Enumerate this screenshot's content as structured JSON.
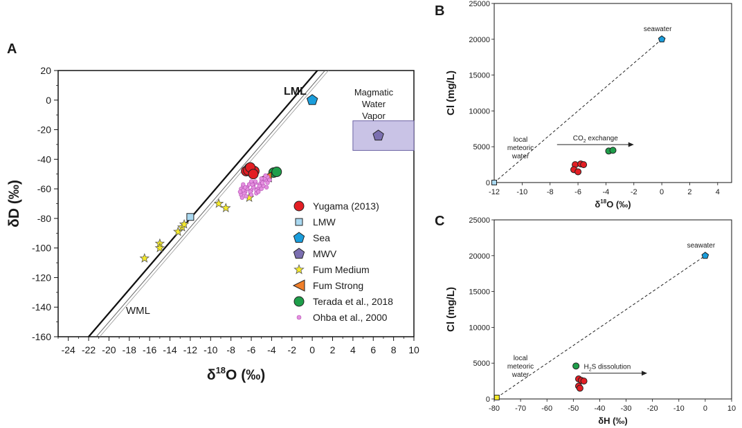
{
  "panels": {
    "A": {
      "letter": "A"
    },
    "B": {
      "letter": "B"
    },
    "C": {
      "letter": "C"
    }
  },
  "colors": {
    "yugama": "#e31e24",
    "lmw": "#a9d8f0",
    "sea": "#1a9ddb",
    "mwv": "#7b6fb0",
    "fum_medium": "#f5ea2a",
    "fum_strong": "#f07f2a",
    "terada": "#1f9e4a",
    "ohba": "#e58fe0",
    "mwv_box": "#c9c3e6"
  },
  "chart_data": [
    {
      "id": "A",
      "type": "scatter",
      "title": "",
      "xlabel": "δ18O (‰)",
      "ylabel": "δD (‰)",
      "xlim": [
        -25,
        10
      ],
      "ylim": [
        -160,
        20
      ],
      "xticks": [
        -24,
        -22,
        -20,
        -18,
        -16,
        -14,
        -12,
        -10,
        -8,
        -6,
        -4,
        -2,
        0,
        2,
        4,
        6,
        8,
        10
      ],
      "yticks": [
        20,
        0,
        -20,
        -40,
        -60,
        -80,
        -100,
        -120,
        -140,
        -160
      ],
      "lines": [
        {
          "name": "LML",
          "label": "LML",
          "slope": 8,
          "intercept": 16
        },
        {
          "name": "WML",
          "label": "WML",
          "slope": 8,
          "intercept": 10
        }
      ],
      "annotations": {
        "magmatic_line1": "Magmatic",
        "magmatic_line2": "Water",
        "magmatic_line3": "Vapor"
      },
      "mwv_box": {
        "x": [
          4,
          10
        ],
        "y": [
          -14,
          -34
        ]
      },
      "series": [
        {
          "name": "Yugama (2013)",
          "marker": "circle",
          "color": "#e31e24",
          "x": [
            -6.5,
            -6.2,
            -6.0,
            -5.9,
            -6.3,
            -5.7,
            -6.1,
            -5.8
          ],
          "y": [
            -48,
            -46,
            -47,
            -49,
            -47.5,
            -48,
            -45.5,
            -50
          ]
        },
        {
          "name": "LMW",
          "marker": "square",
          "color": "#a9d8f0",
          "x": [
            -12
          ],
          "y": [
            -79
          ]
        },
        {
          "name": "Sea",
          "marker": "pentagon",
          "color": "#1a9ddb",
          "x": [
            0
          ],
          "y": [
            0
          ]
        },
        {
          "name": "MWV",
          "marker": "pentagon",
          "color": "#7b6fb0",
          "x": [
            6.5
          ],
          "y": [
            -24
          ]
        },
        {
          "name": "Fum Medium",
          "marker": "star",
          "color": "#f5ea2a",
          "x": [
            -16.5,
            -15,
            -15,
            -13.2,
            -12.8,
            -12.6,
            -9.2,
            -8.5,
            -6.2
          ],
          "y": [
            -107,
            -97,
            -100,
            -89,
            -86,
            -84,
            -70,
            -73,
            -66
          ]
        },
        {
          "name": "Fum Strong",
          "marker": "triangle-left",
          "color": "#f07f2a",
          "x": [
            -4.5
          ],
          "y": [
            -52
          ]
        },
        {
          "name": "Terada et al., 2018",
          "marker": "circle",
          "color": "#1f9e4a",
          "x": [
            -3.8,
            -3.5
          ],
          "y": [
            -49,
            -48.5
          ]
        },
        {
          "name": "Ohba et al., 2000",
          "marker": "small-circle",
          "color": "#e58fe0",
          "x": [
            -7,
            -6.8,
            -6.6,
            -6.4,
            -6.2,
            -6.0,
            -5.8,
            -5.6,
            -5.4,
            -5.2,
            -5.0,
            -4.8,
            -4.6,
            -4.4,
            -7,
            -6.7,
            -6.4,
            -6.1,
            -5.8,
            -5.5,
            -5.2,
            -4.9,
            -6.9,
            -6.5,
            -6.0,
            -5.5,
            -5.0,
            -4.5,
            -6.8,
            -6.2,
            -5.6,
            -7.1,
            -6.6,
            -5.9,
            -5.3,
            -4.7,
            -4.4,
            -5.0,
            -6.0,
            -6.8,
            -4.6,
            -4.2
          ],
          "y": [
            -60,
            -58,
            -62,
            -59,
            -57,
            -61,
            -58,
            -56,
            -60,
            -57,
            -55,
            -58,
            -54,
            -56,
            -64,
            -63,
            -60,
            -62,
            -59,
            -61,
            -58,
            -56,
            -66,
            -65,
            -64,
            -63,
            -60,
            -59,
            -61,
            -57,
            -55,
            -62,
            -59,
            -57,
            -62,
            -53,
            -52,
            -53,
            -55,
            -57,
            -51,
            -54
          ]
        }
      ],
      "legend": {
        "placement": "bottom-right"
      }
    },
    {
      "id": "B",
      "type": "scatter",
      "xlabel": "δ18O (‰)",
      "ylabel": "Cl (mg/L)",
      "xlim": [
        -12,
        5
      ],
      "ylim": [
        0,
        25000
      ],
      "xticks": [
        -12,
        -10,
        -8,
        -6,
        -4,
        -2,
        0,
        2,
        4
      ],
      "yticks": [
        0,
        5000,
        10000,
        15000,
        20000,
        25000
      ],
      "mixing_line": {
        "x": [
          -12,
          0
        ],
        "y": [
          0,
          20000
        ]
      },
      "labels": {
        "seawater": "seawater",
        "local1": "local",
        "local2": "meteoric",
        "local3": "water",
        "process_pre": "CO",
        "process_sub": "2",
        "process_post": " exchange"
      },
      "arrow": {
        "x": [
          -7.5,
          -2
        ],
        "y": [
          5300,
          5300
        ]
      },
      "series": [
        {
          "name": "Yugama",
          "color": "#e31e24",
          "x": [
            -6.2,
            -5.8,
            -5.6,
            -6.3,
            -6.0
          ],
          "y": [
            2500,
            2600,
            2500,
            1800,
            1500
          ]
        },
        {
          "name": "Terada",
          "color": "#1f9e4a",
          "x": [
            -3.8,
            -3.5
          ],
          "y": [
            4400,
            4500
          ]
        },
        {
          "name": "Sea",
          "color": "#1a9ddb",
          "x": [
            0
          ],
          "y": [
            20000
          ]
        },
        {
          "name": "LMW",
          "color": "#a9d8f0",
          "x": [
            -12
          ],
          "y": [
            0
          ]
        }
      ]
    },
    {
      "id": "C",
      "type": "scatter",
      "xlabel": "δH (‰)",
      "ylabel": "Cl (mg/L)",
      "xlim": [
        -80,
        10
      ],
      "ylim": [
        0,
        25000
      ],
      "xticks": [
        -80,
        -70,
        -60,
        -50,
        -40,
        -30,
        -20,
        -10,
        0,
        10
      ],
      "yticks": [
        0,
        5000,
        10000,
        15000,
        20000,
        25000
      ],
      "mixing_line": {
        "x": [
          -79,
          0
        ],
        "y": [
          200,
          20000
        ]
      },
      "labels": {
        "seawater": "seawater",
        "local1": "local",
        "local2": "meteoric",
        "local3": "water",
        "process_pre": "H",
        "process_sub": "2",
        "process_post": "S dissolution"
      },
      "arrow": {
        "x": [
          -47,
          -22
        ],
        "y": [
          3600,
          3600
        ]
      },
      "series": [
        {
          "name": "Yugama",
          "color": "#e31e24",
          "x": [
            -48,
            -47,
            -46,
            -48,
            -47.5
          ],
          "y": [
            2800,
            2600,
            2500,
            1800,
            1500
          ]
        },
        {
          "name": "Terada",
          "color": "#1f9e4a",
          "x": [
            -49
          ],
          "y": [
            4600
          ]
        },
        {
          "name": "Sea",
          "color": "#1a9ddb",
          "x": [
            0
          ],
          "y": [
            20000
          ]
        },
        {
          "name": "LMW",
          "color": "#f5ea2a",
          "x": [
            -79
          ],
          "y": [
            200
          ]
        }
      ]
    }
  ]
}
